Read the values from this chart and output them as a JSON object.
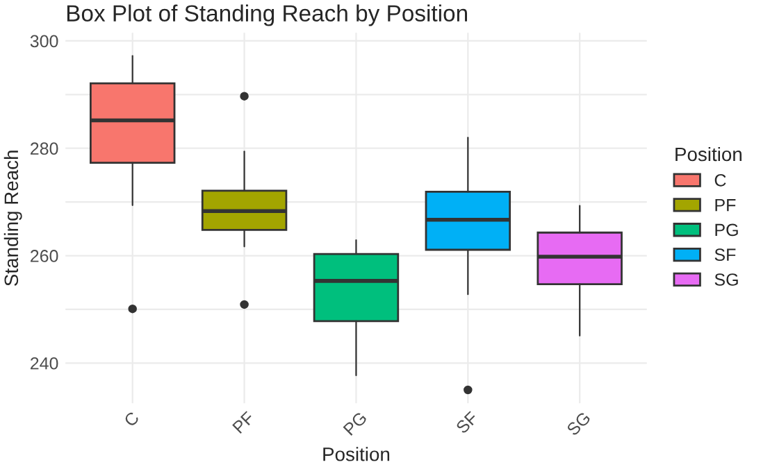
{
  "chart_data": {
    "type": "box",
    "title": "Box Plot of Standing Reach by Position",
    "xlabel": "Position",
    "ylabel": "Standing Reach",
    "legend_title": "Position",
    "categories": [
      "C",
      "PF",
      "PG",
      "SF",
      "SG"
    ],
    "series": [
      {
        "name": "C",
        "color": "#f8766d",
        "boxes": [
          {
            "low": 269.4,
            "q1": 277.3,
            "median": 285.2,
            "q3": 292.1,
            "high": 297.2,
            "outliers": [
              250.1
            ]
          },
          null,
          null,
          null,
          null
        ]
      },
      {
        "name": "PF",
        "color": "#a3a500",
        "boxes": [
          null,
          {
            "low": 261.7,
            "q1": 264.8,
            "median": 268.3,
            "q3": 272.1,
            "high": 279.4,
            "outliers": [
              289.7,
              250.9
            ]
          },
          null,
          null,
          null
        ]
      },
      {
        "name": "PG",
        "color": "#00bf7d",
        "boxes": [
          null,
          null,
          {
            "low": 237.7,
            "q1": 247.8,
            "median": 255.3,
            "q3": 260.3,
            "high": 262.9
          },
          null,
          null
        ]
      },
      {
        "name": "SF",
        "color": "#00b0f6",
        "boxes": [
          null,
          null,
          null,
          {
            "low": 252.8,
            "q1": 261.1,
            "median": 266.7,
            "q3": 271.9,
            "high": 282.0,
            "outliers": [
              235.0
            ]
          },
          null
        ]
      },
      {
        "name": "SG",
        "color": "#e76bf3",
        "boxes": [
          null,
          null,
          null,
          null,
          {
            "low": 245.1,
            "q1": 254.7,
            "median": 259.8,
            "q3": 264.3,
            "high": 269.3
          }
        ]
      }
    ],
    "ylim": [
      232.5,
      301.5
    ],
    "yticks": [
      240,
      {
        "value": 250,
        "label": null
      },
      260,
      {
        "value": 270,
        "label": null
      },
      280,
      {
        "value": 290,
        "label": null
      },
      300
    ],
    "grid": true,
    "legend": "right"
  }
}
